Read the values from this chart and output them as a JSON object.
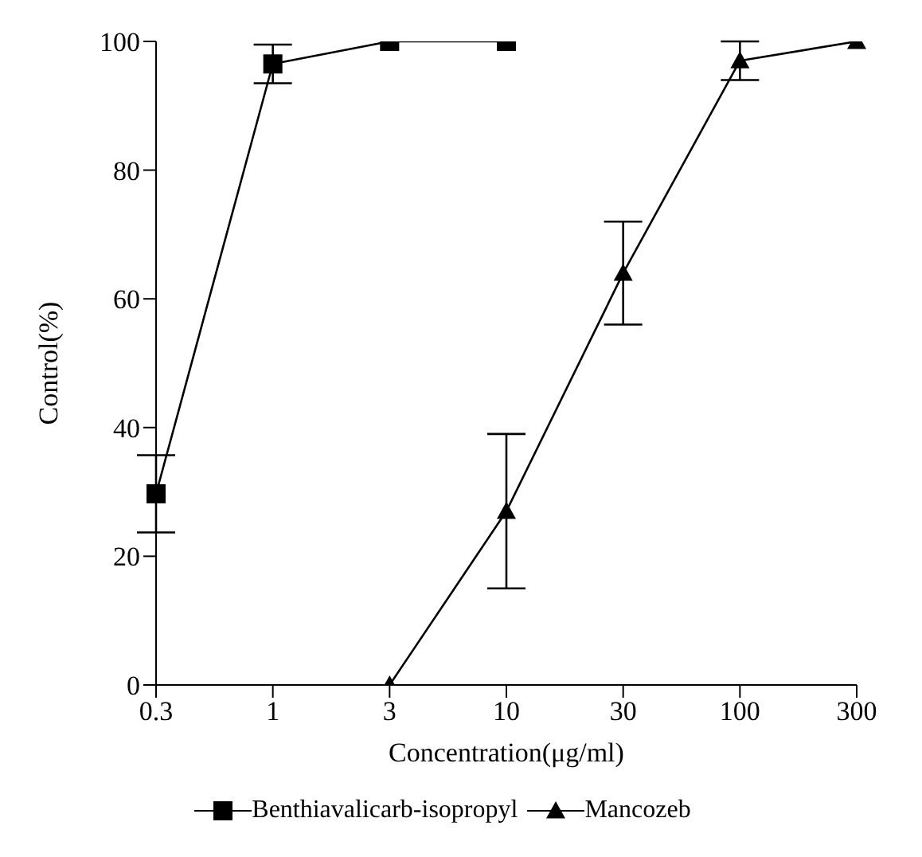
{
  "chart_data": {
    "type": "line",
    "xlabel": "Concentration(μg/ml)",
    "ylabel": "Control(%)",
    "categories": [
      "0.3",
      "1",
      "3",
      "10",
      "30",
      "100",
      "300"
    ],
    "series": [
      {
        "name": "Benthiavalicarb-isopropyl",
        "color": "#000000",
        "marker": "square",
        "values": [
          29.7,
          96.5,
          100,
          100,
          null,
          null,
          null
        ],
        "errors": [
          6,
          3,
          null,
          null,
          null,
          null,
          null
        ]
      },
      {
        "name": "Mancozeb",
        "color": "#000000",
        "marker": "triangle",
        "values": [
          null,
          null,
          0,
          27,
          64,
          97,
          100
        ],
        "errors": [
          null,
          null,
          null,
          12,
          8,
          3,
          null
        ]
      }
    ],
    "ylim": [
      0,
      100
    ],
    "yticks": [
      0,
      20,
      40,
      60,
      80,
      100
    ],
    "grid": false,
    "legend": "bottom",
    "line_style": "solid"
  }
}
